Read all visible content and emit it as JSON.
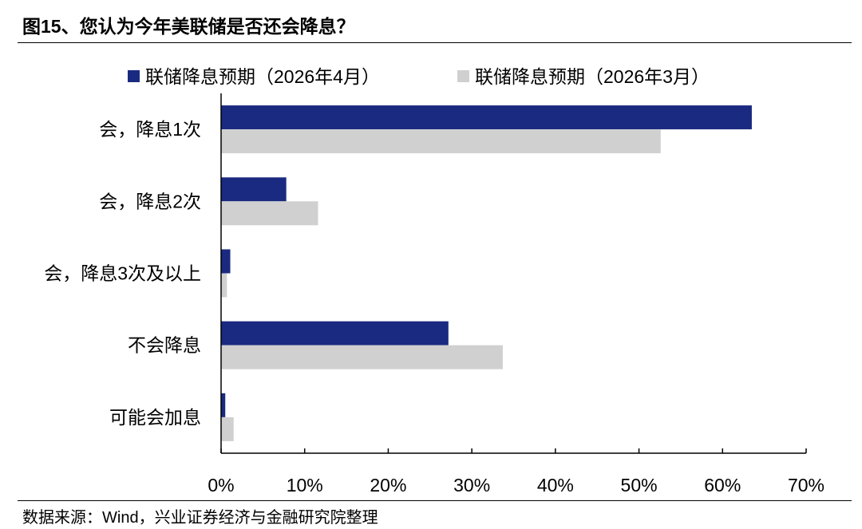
{
  "title": "图15、您认为今年美联储是否还会降息？",
  "source": "数据来源：Wind，兴业证券经济与金融研究院整理",
  "chart_data": {
    "type": "bar",
    "orientation": "horizontal",
    "categories": [
      "会，降息1次",
      "会，降息2次",
      "会，降息3次及以上",
      "不会降息",
      "可能会加息"
    ],
    "series": [
      {
        "name": "联储降息预期（2026年4月）",
        "color": "#1a2a80",
        "values": [
          63.5,
          7.8,
          1.1,
          27.2,
          0.5
        ]
      },
      {
        "name": "联储降息预期（2026年3月）",
        "color": "#d0d0d0",
        "values": [
          52.6,
          11.6,
          0.7,
          33.7,
          1.5
        ]
      }
    ],
    "x_ticks": [
      "0%",
      "10%",
      "20%",
      "30%",
      "40%",
      "50%",
      "60%",
      "70%"
    ],
    "xlim": [
      0,
      70
    ],
    "legend_position": "top",
    "grid": false
  }
}
